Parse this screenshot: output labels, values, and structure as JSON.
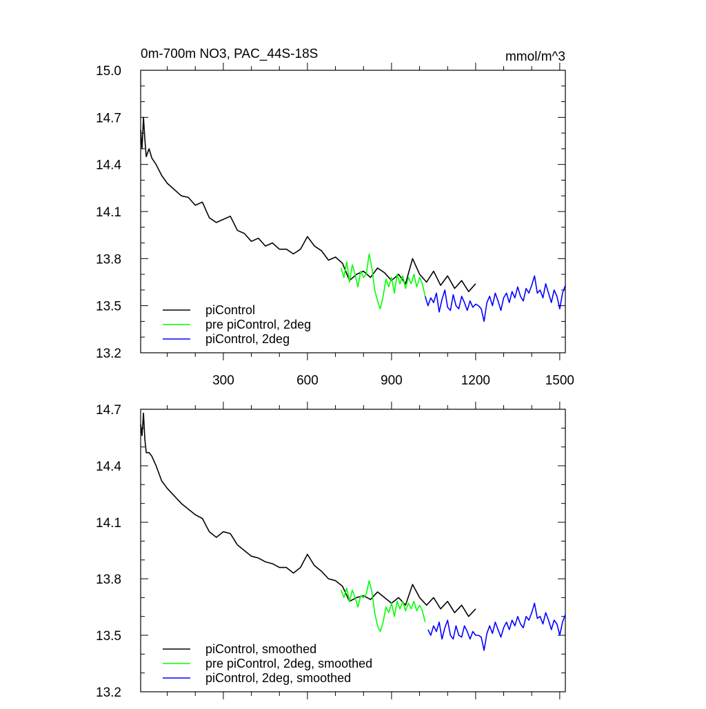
{
  "chart_data": [
    {
      "type": "line",
      "title": "0m-700m NO3, PAC_44S-18S",
      "units": "mmol/m^3",
      "xlim": [
        5,
        1520
      ],
      "ylim": [
        13.2,
        15.0
      ],
      "x_ticks": [
        300,
        600,
        900,
        1200,
        1500
      ],
      "y_ticks": [
        13.2,
        13.5,
        13.8,
        14.1,
        14.4,
        14.7,
        15.0
      ],
      "y_tick_labels": [
        "13.2",
        "13.5",
        "13.8",
        "14.1",
        "14.4",
        "14.7",
        "15.0"
      ],
      "x_tick_labels": [
        "300",
        "600",
        "900",
        "1200",
        "1500"
      ],
      "grid": false,
      "legend_position": "bottom-left",
      "series": [
        {
          "name": "piControl",
          "color": "#000000",
          "x": [
            5,
            10,
            15,
            20,
            25,
            35,
            45,
            60,
            80,
            100,
            125,
            150,
            175,
            200,
            225,
            250,
            275,
            300,
            325,
            350,
            375,
            400,
            425,
            450,
            475,
            500,
            525,
            550,
            575,
            600,
            625,
            650,
            675,
            700,
            725,
            750,
            775,
            800,
            825,
            850,
            875,
            900,
            925,
            950,
            975,
            1000,
            1025,
            1050,
            1075,
            1100,
            1125,
            1150,
            1175,
            1200
          ],
          "y": [
            14.62,
            14.5,
            14.7,
            14.56,
            14.45,
            14.5,
            14.44,
            14.4,
            14.33,
            14.28,
            14.24,
            14.2,
            14.19,
            14.14,
            14.16,
            14.06,
            14.03,
            14.05,
            14.07,
            13.98,
            13.96,
            13.91,
            13.93,
            13.88,
            13.9,
            13.86,
            13.86,
            13.83,
            13.86,
            13.94,
            13.88,
            13.85,
            13.79,
            13.81,
            13.77,
            13.66,
            13.7,
            13.72,
            13.68,
            13.74,
            13.71,
            13.66,
            13.7,
            13.64,
            13.8,
            13.7,
            13.65,
            13.72,
            13.63,
            13.69,
            13.61,
            13.66,
            13.59,
            13.64
          ]
        },
        {
          "name": "pre piControl, 2deg",
          "color": "#00ff00",
          "x": [
            720,
            730,
            740,
            750,
            760,
            770,
            780,
            790,
            800,
            810,
            820,
            830,
            840,
            850,
            860,
            870,
            880,
            890,
            900,
            910,
            920,
            930,
            940,
            950,
            960,
            970,
            980,
            990,
            1000,
            1010,
            1020
          ],
          "y": [
            13.74,
            13.68,
            13.78,
            13.65,
            13.76,
            13.7,
            13.62,
            13.72,
            13.68,
            13.7,
            13.83,
            13.74,
            13.6,
            13.53,
            13.48,
            13.56,
            13.67,
            13.62,
            13.68,
            13.58,
            13.7,
            13.64,
            13.69,
            13.61,
            13.68,
            13.64,
            13.7,
            13.62,
            13.68,
            13.64,
            13.56
          ]
        },
        {
          "name": "piControl, 2deg",
          "color": "#0000ff",
          "x": [
            1020,
            1030,
            1040,
            1050,
            1060,
            1070,
            1080,
            1090,
            1100,
            1110,
            1120,
            1130,
            1140,
            1150,
            1160,
            1170,
            1180,
            1190,
            1200,
            1210,
            1220,
            1230,
            1240,
            1250,
            1260,
            1270,
            1280,
            1290,
            1300,
            1310,
            1320,
            1330,
            1340,
            1350,
            1360,
            1370,
            1380,
            1390,
            1400,
            1410,
            1420,
            1430,
            1440,
            1450,
            1460,
            1470,
            1480,
            1490,
            1500,
            1510,
            1520
          ],
          "y": [
            13.56,
            13.5,
            13.55,
            13.52,
            13.58,
            13.46,
            13.54,
            13.6,
            13.49,
            13.47,
            13.57,
            13.5,
            13.48,
            13.56,
            13.52,
            13.47,
            13.53,
            13.49,
            13.51,
            13.5,
            13.48,
            13.4,
            13.52,
            13.56,
            13.5,
            13.58,
            13.53,
            13.47,
            13.55,
            13.58,
            13.52,
            13.59,
            13.55,
            13.62,
            13.56,
            13.53,
            13.61,
            13.58,
            13.63,
            13.69,
            13.58,
            13.6,
            13.55,
            13.64,
            13.58,
            13.52,
            13.6,
            13.56,
            13.48,
            13.58,
            13.63
          ]
        }
      ]
    },
    {
      "type": "line",
      "title": "",
      "xlim": [
        5,
        1520
      ],
      "ylim": [
        13.2,
        14.7
      ],
      "x_ticks": [
        300,
        600,
        900,
        1200,
        1500
      ],
      "y_ticks": [
        13.2,
        13.5,
        13.8,
        14.1,
        14.4,
        14.7
      ],
      "y_tick_labels": [
        "13.2",
        "13.5",
        "13.8",
        "14.1",
        "14.4",
        "14.7"
      ],
      "grid": false,
      "legend_position": "bottom-left",
      "series": [
        {
          "name": "piControl, smoothed",
          "color": "#000000",
          "x": [
            5,
            10,
            15,
            20,
            25,
            35,
            45,
            60,
            80,
            100,
            125,
            150,
            175,
            200,
            225,
            250,
            275,
            300,
            325,
            350,
            375,
            400,
            425,
            450,
            475,
            500,
            525,
            550,
            575,
            600,
            625,
            650,
            675,
            700,
            725,
            750,
            775,
            800,
            825,
            850,
            875,
            900,
            925,
            950,
            975,
            1000,
            1025,
            1050,
            1075,
            1100,
            1125,
            1150,
            1175,
            1200
          ],
          "y": [
            14.62,
            14.56,
            14.68,
            14.54,
            14.47,
            14.47,
            14.45,
            14.4,
            14.32,
            14.28,
            14.24,
            14.2,
            14.17,
            14.14,
            14.12,
            14.05,
            14.02,
            14.05,
            14.04,
            13.98,
            13.95,
            13.92,
            13.91,
            13.89,
            13.88,
            13.86,
            13.86,
            13.83,
            13.86,
            13.93,
            13.87,
            13.84,
            13.8,
            13.79,
            13.76,
            13.68,
            13.7,
            13.71,
            13.69,
            13.73,
            13.7,
            13.67,
            13.7,
            13.66,
            13.77,
            13.7,
            13.66,
            13.7,
            13.64,
            13.68,
            13.62,
            13.66,
            13.6,
            13.64
          ]
        },
        {
          "name": "pre piControl, 2deg, smoothed",
          "color": "#00ff00",
          "x": [
            720,
            730,
            740,
            750,
            760,
            770,
            780,
            790,
            800,
            810,
            820,
            830,
            840,
            850,
            860,
            870,
            880,
            890,
            900,
            910,
            920,
            930,
            940,
            950,
            960,
            970,
            980,
            990,
            1000,
            1010,
            1020
          ],
          "y": [
            13.74,
            13.7,
            13.75,
            13.68,
            13.74,
            13.7,
            13.65,
            13.71,
            13.7,
            13.72,
            13.79,
            13.73,
            13.62,
            13.55,
            13.52,
            13.57,
            13.65,
            13.62,
            13.67,
            13.6,
            13.68,
            13.64,
            13.68,
            13.63,
            13.67,
            13.64,
            13.68,
            13.63,
            13.66,
            13.63,
            13.57
          ]
        },
        {
          "name": "piControl, 2deg, smoothed",
          "color": "#0000ff",
          "x": [
            1030,
            1040,
            1050,
            1060,
            1070,
            1080,
            1090,
            1100,
            1110,
            1120,
            1130,
            1140,
            1150,
            1160,
            1170,
            1180,
            1190,
            1200,
            1210,
            1220,
            1230,
            1240,
            1250,
            1260,
            1270,
            1280,
            1290,
            1300,
            1310,
            1320,
            1330,
            1340,
            1350,
            1360,
            1370,
            1380,
            1390,
            1400,
            1410,
            1420,
            1430,
            1440,
            1450,
            1460,
            1470,
            1480,
            1490,
            1500,
            1510,
            1520
          ],
          "y": [
            13.53,
            13.5,
            13.55,
            13.52,
            13.57,
            13.48,
            13.54,
            13.58,
            13.5,
            13.48,
            13.55,
            13.5,
            13.49,
            13.55,
            13.52,
            13.48,
            13.52,
            13.5,
            13.5,
            13.49,
            13.42,
            13.51,
            13.55,
            13.51,
            13.57,
            13.53,
            13.49,
            13.54,
            13.57,
            13.53,
            13.58,
            13.55,
            13.6,
            13.56,
            13.54,
            13.6,
            13.58,
            13.62,
            13.67,
            13.59,
            13.6,
            13.56,
            13.62,
            13.58,
            13.53,
            13.58,
            13.56,
            13.5,
            13.57,
            13.61
          ]
        }
      ]
    }
  ]
}
